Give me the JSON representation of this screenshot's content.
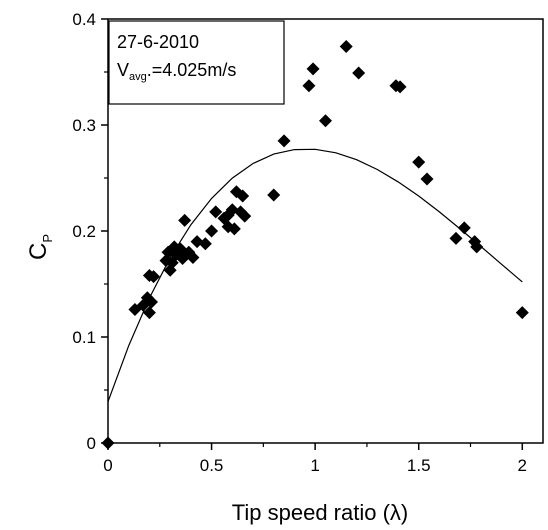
{
  "chart_data": {
    "type": "scatter",
    "title": "",
    "xlabel": "Tip speed ratio (λ)",
    "ylabel": {
      "main": "C",
      "sub": "P"
    },
    "xlim": [
      0,
      2.1
    ],
    "ylim": [
      0,
      0.4
    ],
    "x_ticks": [
      0,
      0.5,
      1,
      1.5,
      2
    ],
    "x_tick_labels": [
      "0",
      "0.5",
      "1",
      "1.5",
      "2"
    ],
    "y_ticks": [
      0,
      0.1,
      0.2,
      0.3,
      0.4
    ],
    "y_tick_labels": [
      "0",
      "0.1",
      "0.2",
      "0.3",
      "0.4"
    ],
    "grid": false,
    "annotation": {
      "date": "27-6-2010",
      "speed_prefix": "V",
      "speed_sub": "avg",
      "speed_suffix": ".=4.025m/s"
    },
    "series": [
      {
        "marker": "diamond",
        "points": [
          [
            0.0,
            0.0
          ],
          [
            0.13,
            0.126
          ],
          [
            0.17,
            0.13
          ],
          [
            0.19,
            0.137
          ],
          [
            0.2,
            0.158
          ],
          [
            0.2,
            0.123
          ],
          [
            0.21,
            0.133
          ],
          [
            0.22,
            0.157
          ],
          [
            0.28,
            0.172
          ],
          [
            0.29,
            0.18
          ],
          [
            0.3,
            0.163
          ],
          [
            0.31,
            0.17
          ],
          [
            0.32,
            0.185
          ],
          [
            0.33,
            0.178
          ],
          [
            0.35,
            0.183
          ],
          [
            0.36,
            0.174
          ],
          [
            0.37,
            0.21
          ],
          [
            0.39,
            0.18
          ],
          [
            0.41,
            0.175
          ],
          [
            0.43,
            0.19
          ],
          [
            0.47,
            0.188
          ],
          [
            0.5,
            0.2
          ],
          [
            0.52,
            0.218
          ],
          [
            0.56,
            0.212
          ],
          [
            0.58,
            0.215
          ],
          [
            0.58,
            0.204
          ],
          [
            0.6,
            0.22
          ],
          [
            0.61,
            0.202
          ],
          [
            0.62,
            0.237
          ],
          [
            0.64,
            0.218
          ],
          [
            0.65,
            0.233
          ],
          [
            0.66,
            0.214
          ],
          [
            0.8,
            0.234
          ],
          [
            0.85,
            0.285
          ],
          [
            0.97,
            0.337
          ],
          [
            0.99,
            0.353
          ],
          [
            1.05,
            0.304
          ],
          [
            1.15,
            0.374
          ],
          [
            1.21,
            0.349
          ],
          [
            1.39,
            0.337
          ],
          [
            1.41,
            0.336
          ],
          [
            1.5,
            0.265
          ],
          [
            1.54,
            0.249
          ],
          [
            1.68,
            0.193
          ],
          [
            1.72,
            0.203
          ],
          [
            1.77,
            0.19
          ],
          [
            1.78,
            0.185
          ],
          [
            2.0,
            0.123
          ]
        ]
      },
      {
        "type": "line",
        "points": [
          [
            0.0,
            0.039
          ],
          [
            0.1,
            0.0918
          ],
          [
            0.2,
            0.1368
          ],
          [
            0.3,
            0.1747
          ],
          [
            0.4,
            0.2059
          ],
          [
            0.5,
            0.2308
          ],
          [
            0.6,
            0.2499
          ],
          [
            0.7,
            0.2637
          ],
          [
            0.8,
            0.2725
          ],
          [
            0.9,
            0.2768
          ],
          [
            1.0,
            0.2771
          ],
          [
            1.1,
            0.2738
          ],
          [
            1.2,
            0.2673
          ],
          [
            1.3,
            0.258
          ],
          [
            1.4,
            0.2464
          ],
          [
            1.5,
            0.233
          ],
          [
            1.6,
            0.218
          ],
          [
            1.7,
            0.202
          ],
          [
            1.8,
            0.1854
          ],
          [
            1.9,
            0.1686
          ],
          [
            2.0,
            0.152
          ]
        ]
      }
    ]
  }
}
